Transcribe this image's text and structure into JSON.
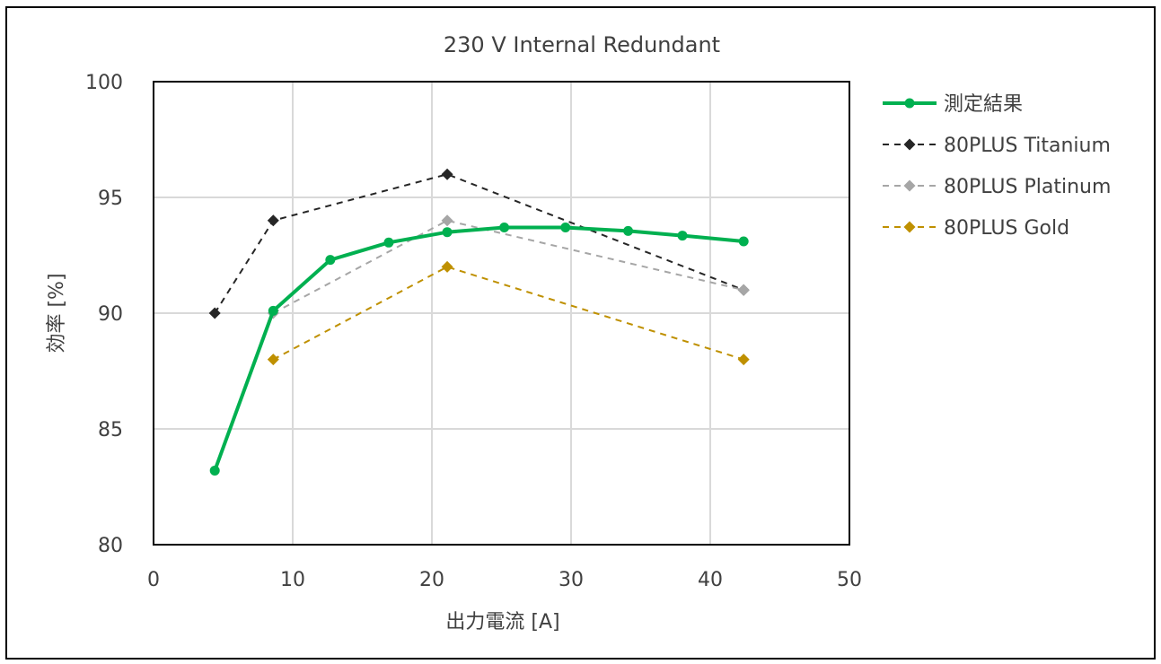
{
  "chart_data": {
    "type": "scatter",
    "title": "230 V Internal Redundant",
    "xlabel": "出力電流 [A]",
    "ylabel": "効率 [%]",
    "xlim": [
      0,
      50
    ],
    "ylim": [
      80,
      100
    ],
    "x_ticks": [
      "0",
      "10",
      "20",
      "30",
      "40",
      "50"
    ],
    "y_ticks": [
      "80",
      "85",
      "90",
      "95",
      "100"
    ],
    "grid": true,
    "legend_position": "right",
    "series": [
      {
        "name": "測定結果",
        "color": "#00b050",
        "line_style": "solid",
        "marker": "circle",
        "points": [
          [
            4.4,
            83.2
          ],
          [
            8.6,
            90.1
          ],
          [
            12.7,
            92.3
          ],
          [
            16.9,
            93.05
          ],
          [
            21.1,
            93.5
          ],
          [
            25.2,
            93.7
          ],
          [
            29.6,
            93.7
          ],
          [
            34.1,
            93.55
          ],
          [
            38.0,
            93.35
          ],
          [
            42.4,
            93.1
          ]
        ]
      },
      {
        "name": "80PLUS Titanium",
        "color": "#262626",
        "line_style": "dashed",
        "marker": "diamond",
        "points": [
          [
            4.4,
            90
          ],
          [
            8.6,
            94
          ],
          [
            21.1,
            96
          ],
          [
            42.4,
            91
          ]
        ]
      },
      {
        "name": "80PLUS Platinum",
        "color": "#a6a6a6",
        "line_style": "dashed",
        "marker": "diamond",
        "points": [
          [
            8.6,
            90
          ],
          [
            21.1,
            94
          ],
          [
            42.4,
            91
          ]
        ]
      },
      {
        "name": "80PLUS Gold",
        "color": "#bf9000",
        "line_style": "dashed",
        "marker": "diamond",
        "points": [
          [
            8.6,
            88
          ],
          [
            21.1,
            92
          ],
          [
            42.4,
            88
          ]
        ]
      }
    ]
  }
}
